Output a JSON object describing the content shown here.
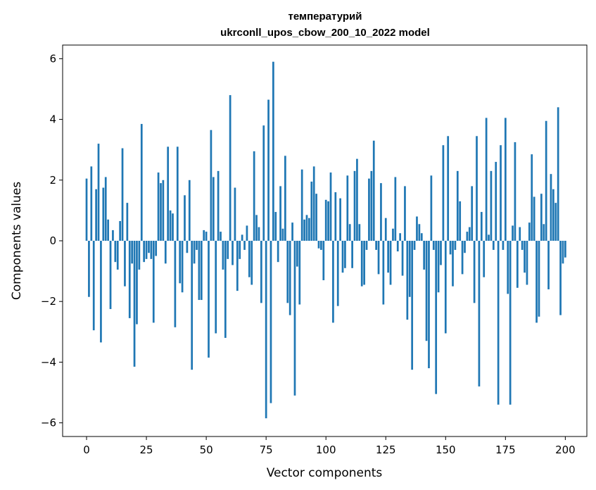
{
  "chart_data": {
    "type": "bar",
    "title_line1": "температурий",
    "title_line2": "ukrconll_upos_cbow_200_10_2022 model",
    "xlabel": "Vector components",
    "ylabel": "Components values",
    "xlim": [
      -10,
      209
    ],
    "ylim": [
      -6.45,
      6.45
    ],
    "xticks": [
      0,
      25,
      50,
      75,
      100,
      125,
      150,
      175,
      200
    ],
    "yticks": [
      -6,
      -4,
      -2,
      0,
      2,
      4,
      6
    ],
    "xtick_labels": [
      "0",
      "25",
      "50",
      "75",
      "100",
      "125",
      "150",
      "175",
      "200"
    ],
    "ytick_labels": [
      "−6",
      "−4",
      "−2",
      "0",
      "2",
      "4",
      "6"
    ],
    "grid": false,
    "bar_color": "#1f77b4",
    "values": [
      2.05,
      -1.85,
      2.45,
      -2.95,
      1.7,
      3.2,
      -3.35,
      1.75,
      2.1,
      0.7,
      -2.25,
      0.35,
      -0.7,
      -0.95,
      0.65,
      3.05,
      -1.5,
      1.25,
      -2.55,
      -0.75,
      -4.15,
      -2.75,
      -0.95,
      3.85,
      -0.7,
      -0.6,
      -0.4,
      -0.6,
      -2.7,
      -0.5,
      2.25,
      1.9,
      2.0,
      -0.75,
      3.1,
      1.0,
      0.9,
      -2.85,
      3.1,
      -1.4,
      -1.7,
      1.5,
      -0.4,
      2.0,
      -4.25,
      -0.75,
      -0.3,
      -1.95,
      -1.95,
      0.35,
      0.3,
      -3.85,
      3.65,
      2.1,
      -3.05,
      2.3,
      0.3,
      -0.95,
      -3.2,
      -0.6,
      4.8,
      -0.8,
      1.75,
      -1.65,
      -0.6,
      0.2,
      -0.3,
      0.5,
      -1.2,
      -1.45,
      2.95,
      0.85,
      0.45,
      -2.05,
      3.8,
      -5.85,
      4.65,
      -5.35,
      5.9,
      0.95,
      -0.7,
      1.8,
      0.4,
      2.8,
      -2.05,
      -2.45,
      0.6,
      -5.1,
      -0.85,
      -2.1,
      2.35,
      0.7,
      0.85,
      0.75,
      1.95,
      2.45,
      1.55,
      -0.25,
      -0.3,
      -1.3,
      1.35,
      1.3,
      2.25,
      -2.7,
      1.6,
      -2.15,
      1.4,
      -1.05,
      -0.9,
      2.15,
      0.55,
      -0.9,
      2.3,
      2.7,
      0.55,
      -1.5,
      -1.45,
      -0.3,
      2.05,
      2.3,
      3.3,
      -0.3,
      -1.1,
      1.9,
      -2.1,
      0.75,
      -1.05,
      -1.45,
      0.4,
      2.1,
      -0.35,
      0.25,
      -1.15,
      1.8,
      -2.6,
      -1.85,
      -4.25,
      -0.3,
      0.8,
      0.55,
      0.25,
      -0.95,
      -3.3,
      -4.2,
      2.15,
      -0.3,
      -5.05,
      -1.7,
      -0.8,
      3.15,
      -3.05,
      3.45,
      -0.45,
      -1.5,
      -0.3,
      2.3,
      1.3,
      -1.1,
      -0.4,
      0.3,
      0.45,
      1.8,
      -2.05,
      3.45,
      -4.8,
      0.95,
      -1.2,
      4.05,
      0.2,
      2.3,
      -0.3,
      2.6,
      -5.4,
      3.15,
      -0.3,
      4.05,
      -1.75,
      -5.4,
      0.5,
      3.25,
      -1.55,
      0.45,
      -0.3,
      -1.05,
      -1.45,
      0.6,
      2.85,
      1.45,
      -2.7,
      -2.5,
      1.55,
      0.55,
      3.95,
      -1.6,
      2.2,
      1.7,
      1.25,
      4.4,
      -2.45,
      -0.75,
      -0.55
    ]
  }
}
